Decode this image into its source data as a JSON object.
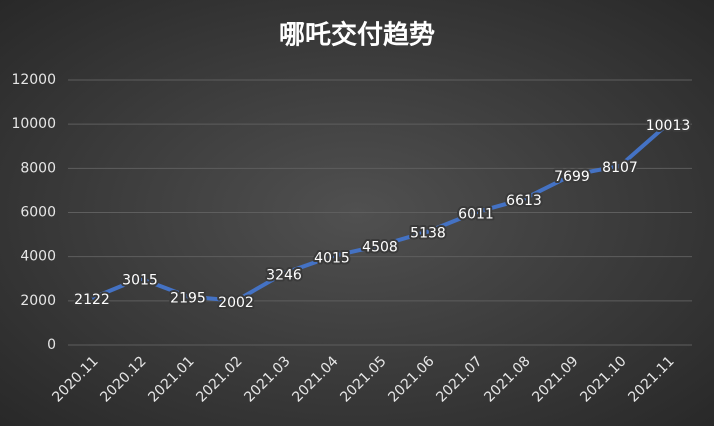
{
  "chart_data": {
    "type": "line",
    "title": "哪吒交付趋势",
    "categories": [
      "2020.11",
      "2020.12",
      "2021.01",
      "2021.02",
      "2021.03",
      "2021.04",
      "2021.05",
      "2021.06",
      "2021.07",
      "2021.08",
      "2021.09",
      "2021.10",
      "2021.11"
    ],
    "values": [
      2122,
      3015,
      2195,
      2002,
      3246,
      4015,
      4508,
      5138,
      6011,
      6613,
      7699,
      8107,
      10013
    ],
    "color": "#4472c4",
    "ylim": [
      0,
      12000
    ],
    "yticks": [
      0,
      2000,
      4000,
      6000,
      8000,
      10000,
      12000
    ],
    "grid": true
  }
}
